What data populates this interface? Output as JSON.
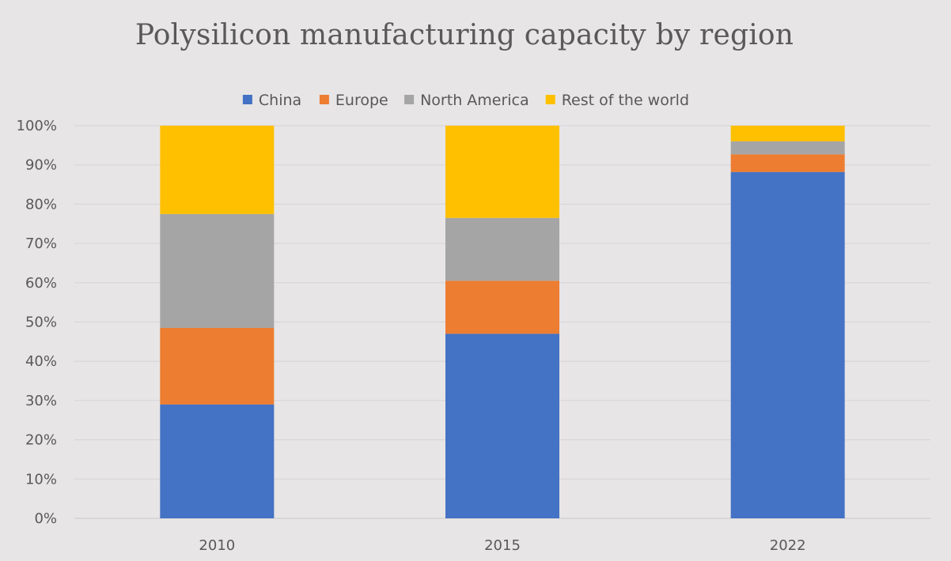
{
  "chart_data": {
    "type": "bar",
    "stacked": true,
    "title": "Polysilicon manufacturing capacity by region",
    "xlabel": "",
    "ylabel": "",
    "categories": [
      "2010",
      "2015",
      "2022"
    ],
    "series": [
      {
        "name": "China",
        "color": "#4472c4",
        "values": [
          29,
          47,
          88.2
        ]
      },
      {
        "name": "Europe",
        "color": "#ed7d31",
        "values": [
          19.5,
          13.5,
          4.5
        ]
      },
      {
        "name": "North America",
        "color": "#a5a5a5",
        "values": [
          29,
          16,
          3.3
        ]
      },
      {
        "name": "Rest of the world",
        "color": "#ffc000",
        "values": [
          22.5,
          23.5,
          4
        ]
      }
    ],
    "ylim": [
      0,
      100
    ],
    "yticks": [
      "0%",
      "10%",
      "20%",
      "30%",
      "40%",
      "50%",
      "60%",
      "70%",
      "80%",
      "90%",
      "100%"
    ],
    "grid": true,
    "legend_position": "top"
  }
}
